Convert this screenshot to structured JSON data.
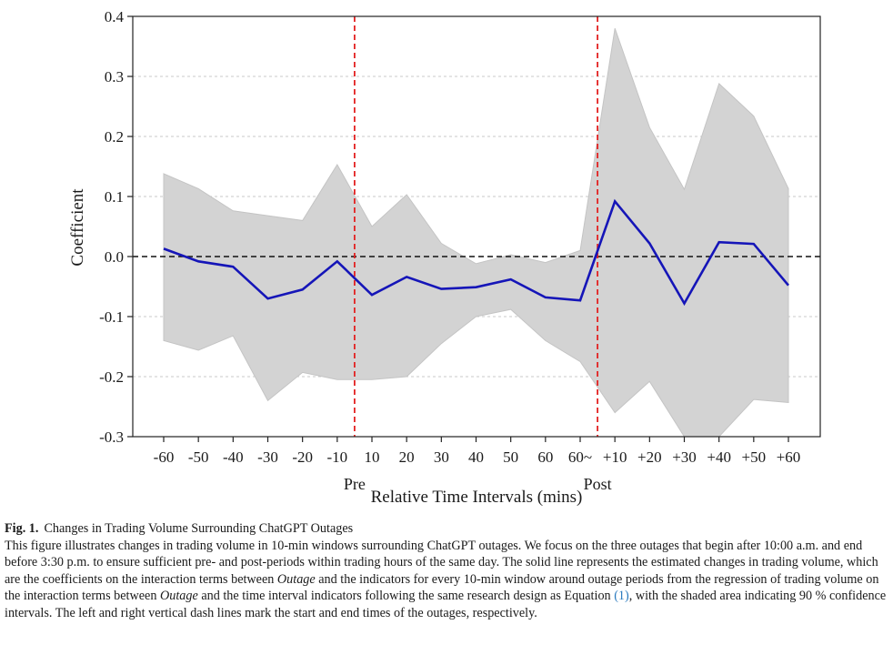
{
  "chart_data": {
    "type": "line",
    "categories": [
      "-60",
      "-50",
      "-40",
      "-30",
      "-20",
      "-10",
      "10",
      "20",
      "30",
      "40",
      "50",
      "60",
      "60~",
      "+10",
      "+20",
      "+30",
      "+40",
      "+50",
      "+60"
    ],
    "series": [
      {
        "values": [
          0.013,
          -0.008,
          -0.017,
          -0.07,
          -0.055,
          -0.008,
          -0.064,
          -0.034,
          -0.054,
          -0.051,
          -0.038,
          -0.068,
          -0.073,
          0.092,
          0.022,
          -0.078,
          0.024,
          0.021,
          -0.048
        ],
        "lower": [
          -0.14,
          -0.156,
          -0.132,
          -0.24,
          -0.193,
          -0.205,
          -0.205,
          -0.2,
          -0.145,
          -0.1,
          -0.088,
          -0.14,
          -0.175,
          -0.26,
          -0.208,
          -0.3,
          -0.3,
          -0.238,
          -0.243
        ],
        "upper": [
          0.138,
          0.113,
          0.076,
          0.068,
          0.06,
          0.153,
          0.05,
          0.103,
          0.022,
          -0.012,
          0.003,
          -0.01,
          0.01,
          0.38,
          0.215,
          0.112,
          0.288,
          0.234,
          0.113
        ]
      }
    ],
    "ylabel": "Coefficient",
    "xlabel": "Relative Time Intervals (mins)",
    "ylim": [
      -0.3,
      0.4
    ],
    "yticks": [
      "-0.3",
      "-0.2",
      "-0.1",
      "0.0",
      "0.1",
      "0.2",
      "0.3",
      "0.4"
    ],
    "reference_line_y": 0.0,
    "vlines": [
      {
        "after_category": "-10",
        "label": "Pre"
      },
      {
        "after_category": "60~",
        "label": "Post"
      }
    ],
    "colors": {
      "line": "#1515b8",
      "band": "#d3d3d3",
      "band_edge": "#c4c4c4",
      "vline": "#e32222",
      "refline": "#111111"
    },
    "grid": "horizontal dashed"
  },
  "caption": {
    "fig_label": "Fig. 1.",
    "fig_title": "Changes in Trading Volume Surrounding ChatGPT Outages",
    "text_1": "This figure illustrates changes in trading volume in 10-min windows surrounding ChatGPT outages. We focus on the three outages that begin after 10:00 a.m. and end before 3:30 p.m. to ensure sufficient pre- and post-periods within trading hours of the same day. The solid line represents the estimated changes in trading volume, which are the coefficients on the interaction terms between ",
    "emph_1": "Outage",
    "text_2": " and the indicators for every 10-min window around outage periods from the regression of trading volume on the interaction terms between ",
    "emph_2": "Outage",
    "text_3": " and the time interval indicators following the same research design as Equation ",
    "ref": "(1)",
    "text_4": ", with the shaded area indicating 90 % confidence intervals. The left and right vertical dash lines mark the start and end times of the outages, respectively."
  }
}
